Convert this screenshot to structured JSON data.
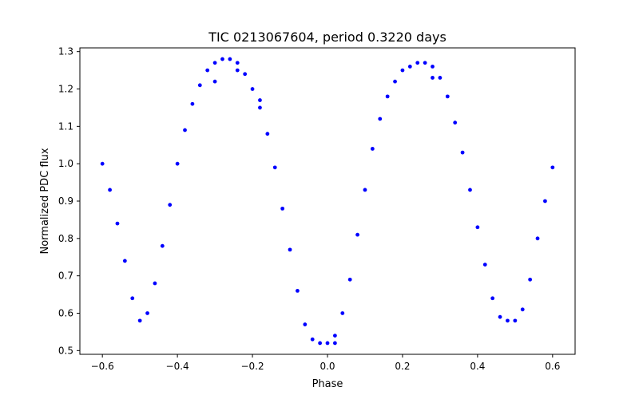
{
  "chart_data": {
    "type": "scatter",
    "title": "TIC 0213067604, period 0.3220 days",
    "xlabel": "Phase",
    "ylabel": "Normalized PDC flux",
    "xlim": [
      -0.66,
      0.66
    ],
    "ylim": [
      0.49,
      1.31
    ],
    "x_ticks": [
      -0.6,
      -0.4,
      -0.2,
      0.0,
      0.2,
      0.4,
      0.6
    ],
    "x_tick_labels": [
      "−0.6",
      "−0.4",
      "−0.2",
      "0.0",
      "0.2",
      "0.4",
      "0.6"
    ],
    "y_ticks": [
      0.5,
      0.6,
      0.7,
      0.8,
      0.9,
      1.0,
      1.1,
      1.2,
      1.3
    ],
    "y_tick_labels": [
      "0.5",
      "0.6",
      "0.7",
      "0.8",
      "0.9",
      "1.0",
      "1.1",
      "1.2",
      "1.3"
    ],
    "grid": false,
    "legend": "none",
    "marker_color": "#0000ff",
    "series": [
      {
        "x": [
          -0.6,
          -0.58,
          -0.56,
          -0.54,
          -0.52,
          -0.5,
          -0.48,
          -0.46,
          -0.44,
          -0.42,
          -0.4,
          -0.38,
          -0.36,
          -0.34,
          -0.32,
          -0.3,
          -0.28,
          -0.26,
          -0.24,
          -0.22,
          -0.2,
          -0.18,
          -0.16,
          -0.14,
          -0.12,
          -0.1,
          -0.08,
          -0.06,
          -0.04,
          -0.02,
          0.0,
          0.02,
          0.04,
          0.06,
          0.08,
          0.1,
          0.12,
          0.14,
          0.16,
          0.18,
          0.2,
          0.22,
          0.24,
          0.26,
          0.28,
          0.3,
          0.32,
          0.34,
          0.36,
          0.38,
          0.4,
          0.42,
          0.44,
          0.46,
          0.48,
          0.5,
          0.52,
          0.54,
          0.56,
          0.58,
          0.6
        ],
        "y": [
          1.0,
          0.93,
          0.84,
          0.74,
          0.64,
          0.58,
          0.6,
          0.68,
          0.78,
          0.89,
          1.0,
          1.09,
          1.16,
          1.21,
          1.25,
          1.27,
          1.28,
          1.28,
          1.27,
          1.24,
          1.2,
          1.15,
          1.08,
          0.99,
          0.88,
          0.77,
          0.66,
          0.57,
          0.53,
          0.52,
          0.52,
          0.54,
          0.6,
          0.69,
          0.81,
          0.93,
          1.04,
          1.12,
          1.18,
          1.22,
          1.25,
          1.26,
          1.27,
          1.27,
          1.26,
          1.23,
          1.18,
          1.11,
          1.03,
          0.93,
          0.83,
          0.73,
          0.64,
          0.59,
          0.58,
          0.58,
          0.61,
          0.69,
          0.8,
          0.9,
          0.99
        ]
      },
      {
        "x": [
          -0.3,
          -0.24,
          -0.18,
          0.02,
          0.28
        ],
        "y": [
          1.22,
          1.25,
          1.17,
          0.52,
          1.23
        ]
      }
    ]
  }
}
